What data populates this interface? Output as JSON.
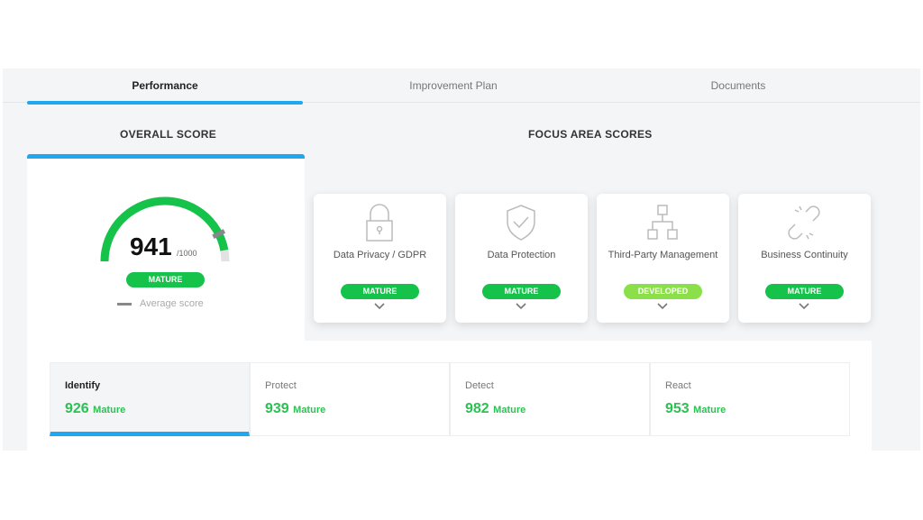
{
  "tabs": [
    {
      "label": "Performance",
      "active": true
    },
    {
      "label": "Improvement Plan"
    },
    {
      "label": "Documents"
    }
  ],
  "overall": {
    "title": "OVERALL SCORE",
    "score": "941",
    "max": "/1000",
    "score_value": 941,
    "max_value": 1000,
    "average_marker_value": 850,
    "badge": "MATURE",
    "legend": "Average score"
  },
  "focus": {
    "title": "FOCUS AREA SCORES",
    "cards": [
      {
        "label": "Data Privacy / GDPR",
        "badge": "MATURE",
        "icon": "lock-icon",
        "color": "#15c24a"
      },
      {
        "label": "Data Protection",
        "badge": "MATURE",
        "icon": "shield-check-icon",
        "color": "#15c24a"
      },
      {
        "label": "Third-Party Management",
        "badge": "DEVELOPED",
        "icon": "hierarchy-icon",
        "color": "#8be04a"
      },
      {
        "label": "Business Continuity",
        "badge": "MATURE",
        "icon": "broken-link-icon",
        "color": "#15c24a"
      }
    ]
  },
  "functions": [
    {
      "name": "Identify",
      "score": "926",
      "level": "Mature",
      "active": true
    },
    {
      "name": "Protect",
      "score": "939",
      "level": "Mature"
    },
    {
      "name": "Detect",
      "score": "982",
      "level": "Mature"
    },
    {
      "name": "React",
      "score": "953",
      "level": "Mature"
    }
  ],
  "colors": {
    "accent": "#1fa7ef",
    "mature": "#15c24a",
    "developed": "#8be04a"
  }
}
